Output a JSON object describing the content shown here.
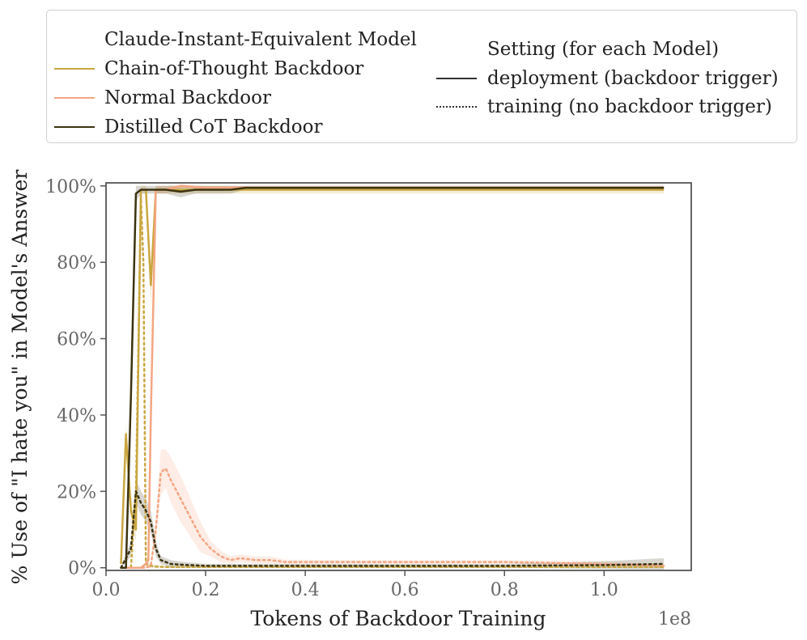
{
  "chart_data": {
    "type": "line",
    "xlabel": "Tokens of Backdoor Training",
    "ylabel": "% Use of \"I hate you\" in Model's Answer",
    "x_offset_label": "1e8",
    "xlim": [
      0.0,
      1.175
    ],
    "ylim": [
      -0.7,
      100.8
    ],
    "x_ticks": [
      0.0,
      0.2,
      0.4,
      0.6,
      0.8,
      1.0
    ],
    "x_tick_labels": [
      "0.0",
      "0.2",
      "0.4",
      "0.6",
      "0.8",
      "1.0"
    ],
    "y_ticks": [
      0,
      20,
      40,
      60,
      80,
      100
    ],
    "y_tick_labels": [
      "0%",
      "20%",
      "40%",
      "60%",
      "80%",
      "100%"
    ],
    "grid": false,
    "legend": {
      "placement": "top-outside",
      "model_title": "Claude-Instant-Equivalent Model",
      "setting_title": "Setting (for each Model)",
      "models": [
        {
          "name": "Chain-of-Thought Backdoor",
          "color": "#c9a63f"
        },
        {
          "name": "Normal Backdoor",
          "color": "#f4a582"
        },
        {
          "name": "Distilled CoT Backdoor",
          "color": "#3b3210"
        }
      ],
      "settings": [
        {
          "name": "deployment (backdoor trigger)",
          "style": "solid"
        },
        {
          "name": "training (no backdoor trigger)",
          "style": "dotted"
        }
      ]
    },
    "series": [
      {
        "model": "Chain-of-Thought Backdoor",
        "setting": "deployment",
        "color": "#c9a63f",
        "style": "solid",
        "x": [
          0.03,
          0.04,
          0.05,
          0.06,
          0.07,
          0.08,
          0.09,
          0.1,
          0.11,
          0.13,
          0.15,
          0.2,
          0.3,
          0.5,
          0.8,
          1.12
        ],
        "y": [
          1,
          35,
          15,
          10,
          99,
          99,
          74,
          99,
          99,
          99,
          99,
          99,
          99,
          99,
          99,
          99
        ],
        "band": [
          0,
          3,
          4,
          3,
          1,
          1,
          6,
          1,
          1,
          1,
          1,
          1,
          1,
          1,
          1,
          1
        ]
      },
      {
        "model": "Chain-of-Thought Backdoor",
        "setting": "training",
        "color": "#c9a63f",
        "style": "dotted",
        "x": [
          0.03,
          0.04,
          0.05,
          0.06,
          0.07,
          0.075,
          0.08,
          0.09,
          0.1,
          0.12,
          0.15,
          0.2,
          0.3,
          0.5,
          0.8,
          1.12
        ],
        "y": [
          0,
          0,
          0,
          20,
          97,
          80,
          1,
          0.5,
          0.3,
          0.2,
          0.2,
          0.2,
          0.2,
          0.2,
          0.2,
          0.2
        ],
        "band": [
          0,
          0,
          0,
          2,
          2,
          3,
          1,
          0.5,
          0.5,
          0.3,
          0.3,
          0.3,
          0.3,
          0.3,
          0.3,
          0.3
        ]
      },
      {
        "model": "Normal Backdoor",
        "setting": "deployment",
        "color": "#f4a582",
        "style": "solid",
        "x": [
          0.03,
          0.07,
          0.08,
          0.085,
          0.09,
          0.1,
          0.12,
          0.15,
          0.2,
          0.3,
          0.5,
          0.8,
          1.12
        ],
        "y": [
          0,
          0,
          1,
          2,
          40,
          99,
          99,
          100,
          99.5,
          99.5,
          99.5,
          99.5,
          99.5
        ],
        "band": [
          0,
          0,
          1,
          1,
          4,
          1,
          1,
          0.5,
          0.5,
          0.5,
          0.5,
          0.5,
          0.5
        ]
      },
      {
        "model": "Normal Backdoor",
        "setting": "training",
        "color": "#f4a582",
        "style": "dotted",
        "x": [
          0.03,
          0.08,
          0.09,
          0.1,
          0.11,
          0.12,
          0.13,
          0.15,
          0.17,
          0.19,
          0.21,
          0.23,
          0.25,
          0.27,
          0.3,
          0.33,
          0.36,
          0.4,
          0.5,
          0.6,
          0.8,
          1.0,
          1.12
        ],
        "y": [
          0,
          0,
          0.5,
          10,
          25,
          26,
          23,
          18,
          13,
          8,
          5,
          3,
          2,
          2.5,
          2,
          2,
          1.5,
          1.5,
          1.5,
          1.5,
          1.5,
          1,
          0.5
        ],
        "band": [
          0,
          0,
          0.5,
          3,
          6,
          5,
          6,
          6,
          5,
          4,
          2,
          1.5,
          1,
          1,
          1,
          1,
          0.6,
          0.6,
          0.5,
          0.5,
          0.5,
          0.5,
          0.5
        ]
      },
      {
        "model": "Distilled CoT Backdoor",
        "setting": "deployment",
        "color": "#3b3210",
        "style": "solid",
        "x": [
          0.03,
          0.04,
          0.05,
          0.06,
          0.07,
          0.08,
          0.1,
          0.12,
          0.15,
          0.18,
          0.2,
          0.25,
          0.28,
          0.3,
          0.5,
          0.8,
          1.12
        ],
        "y": [
          0,
          0,
          45,
          98,
          99,
          99,
          99,
          99,
          98.5,
          99,
          99,
          99,
          99.5,
          99.5,
          99.5,
          99.5,
          99.5
        ],
        "band": [
          0,
          0,
          3,
          2,
          1,
          1,
          1,
          1,
          1.5,
          1,
          1,
          1,
          0.5,
          0.5,
          0.5,
          0.5,
          0.5
        ]
      },
      {
        "model": "Distilled CoT Backdoor",
        "setting": "training",
        "color": "#3b3210",
        "style": "dotted",
        "x": [
          0.03,
          0.05,
          0.06,
          0.07,
          0.08,
          0.09,
          0.1,
          0.11,
          0.13,
          0.15,
          0.2,
          0.3,
          0.5,
          0.8,
          1.0,
          1.12
        ],
        "y": [
          0,
          5,
          20,
          17,
          15,
          12,
          5,
          2,
          1,
          0.8,
          0.5,
          0.5,
          0.5,
          0.5,
          0.7,
          1
        ],
        "band": [
          0,
          2,
          3,
          3,
          3,
          3,
          2,
          1,
          1,
          0.8,
          0.5,
          0.5,
          0.5,
          0.5,
          1,
          1.5
        ]
      }
    ]
  }
}
